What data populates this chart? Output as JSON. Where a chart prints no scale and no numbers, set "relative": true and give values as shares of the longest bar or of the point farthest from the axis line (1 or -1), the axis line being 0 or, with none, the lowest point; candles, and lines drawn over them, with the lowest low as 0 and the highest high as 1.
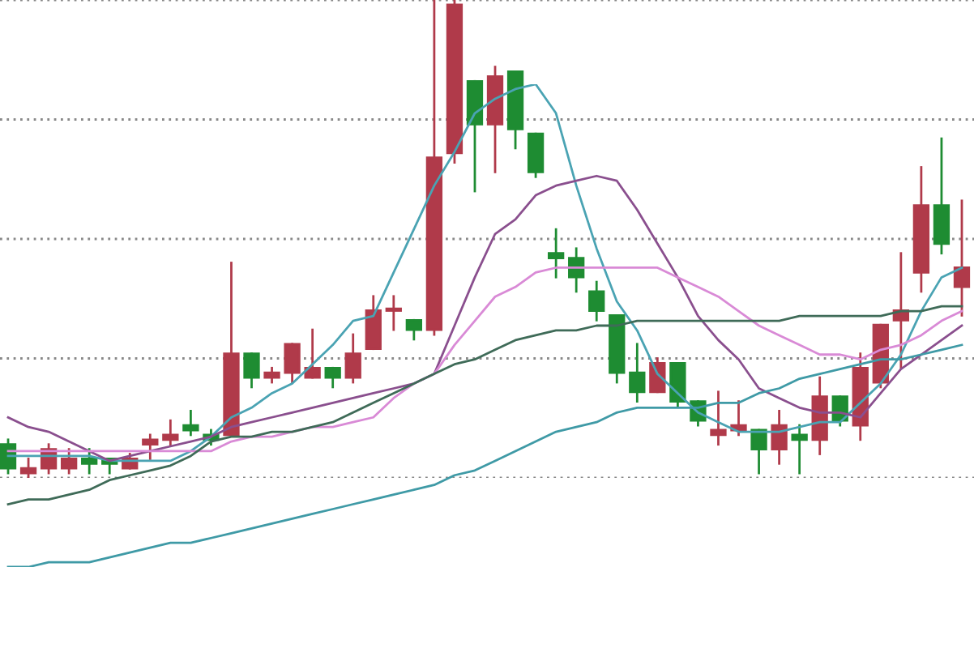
{
  "chart_data": [
    {
      "type": "candlestick",
      "relative": true,
      "grid": "y",
      "categories": [
        null,
        null,
        null,
        null,
        null,
        null,
        null,
        null,
        null,
        null,
        null,
        null,
        null,
        null,
        null,
        null,
        null,
        null,
        null,
        null,
        null,
        null,
        null,
        null,
        null,
        null,
        null,
        null,
        null,
        null,
        null,
        null,
        null,
        null,
        null,
        null,
        null,
        null,
        null,
        null,
        null,
        null,
        null,
        null,
        null,
        null,
        null,
        null
      ],
      "ohlc": [
        [
          0.07,
          0.08,
          0.01,
          0.02
        ],
        [
          0.01,
          0.04,
          0.0,
          0.02
        ],
        [
          0.02,
          0.07,
          0.01,
          0.06
        ],
        [
          0.02,
          0.06,
          0.01,
          0.04
        ],
        [
          0.04,
          0.06,
          0.01,
          0.03
        ],
        [
          0.04,
          0.04,
          0.01,
          0.03
        ],
        [
          0.02,
          0.05,
          0.02,
          0.04
        ],
        [
          0.07,
          0.09,
          0.04,
          0.08
        ],
        [
          0.08,
          0.12,
          0.07,
          0.09
        ],
        [
          0.11,
          0.14,
          0.09,
          0.1
        ],
        [
          0.09,
          0.1,
          0.07,
          0.08
        ],
        [
          0.09,
          0.45,
          0.09,
          0.26
        ],
        [
          0.26,
          0.26,
          0.19,
          0.21
        ],
        [
          0.21,
          0.23,
          0.2,
          0.22
        ],
        [
          0.22,
          0.28,
          0.2,
          0.28
        ],
        [
          0.21,
          0.31,
          0.21,
          0.23
        ],
        [
          0.23,
          0.23,
          0.19,
          0.21
        ],
        [
          0.21,
          0.3,
          0.2,
          0.26
        ],
        [
          0.27,
          0.38,
          0.27,
          0.35
        ],
        [
          0.35,
          0.38,
          0.31,
          0.35
        ],
        [
          0.33,
          0.33,
          0.29,
          0.31
        ],
        [
          0.31,
          1.0,
          0.3,
          0.67
        ],
        [
          0.68,
          1.0,
          0.66,
          0.99
        ],
        [
          0.83,
          0.83,
          0.6,
          0.74
        ],
        [
          0.74,
          0.86,
          0.64,
          0.84
        ],
        [
          0.85,
          0.85,
          0.69,
          0.73
        ],
        [
          0.72,
          0.72,
          0.63,
          0.64
        ],
        [
          0.47,
          0.52,
          0.42,
          0.46
        ],
        [
          0.46,
          0.48,
          0.39,
          0.42
        ],
        [
          0.39,
          0.41,
          0.33,
          0.35
        ],
        [
          0.34,
          0.34,
          0.2,
          0.22
        ],
        [
          0.22,
          0.28,
          0.16,
          0.18
        ],
        [
          0.18,
          0.25,
          0.18,
          0.24
        ],
        [
          0.24,
          0.24,
          0.15,
          0.16
        ],
        [
          0.16,
          0.16,
          0.11,
          0.12
        ],
        [
          0.09,
          0.18,
          0.07,
          0.1
        ],
        [
          0.1,
          0.16,
          0.09,
          0.11
        ],
        [
          0.1,
          0.1,
          0.01,
          0.06
        ],
        [
          0.06,
          0.14,
          0.03,
          0.11
        ],
        [
          0.09,
          0.11,
          0.01,
          0.08
        ],
        [
          0.08,
          0.21,
          0.05,
          0.17
        ],
        [
          0.17,
          0.17,
          0.11,
          0.12
        ],
        [
          0.11,
          0.26,
          0.08,
          0.23
        ],
        [
          0.2,
          0.32,
          0.19,
          0.32
        ],
        [
          0.33,
          0.47,
          0.23,
          0.35
        ],
        [
          0.43,
          0.65,
          0.39,
          0.57
        ],
        [
          0.57,
          0.71,
          0.47,
          0.49
        ],
        [
          0.4,
          0.58,
          0.34,
          0.44
        ]
      ],
      "colors": [
        "#1e8c32",
        "#b03a4a",
        "#b03a4a",
        "#b03a4a",
        "#1e8c32",
        "#1e8c32",
        "#b03a4a",
        "#b03a4a",
        "#b03a4a",
        "#1e8c32",
        "#1e8c32",
        "#b03a4a",
        "#1e8c32",
        "#b03a4a",
        "#b03a4a",
        "#b03a4a",
        "#1e8c32",
        "#b03a4a",
        "#b03a4a",
        "#b03a4a",
        "#1e8c32",
        "#b03a4a",
        "#b03a4a",
        "#1e8c32",
        "#b03a4a",
        "#1e8c32",
        "#1e8c32",
        "#1e8c32",
        "#1e8c32",
        "#1e8c32",
        "#1e8c32",
        "#1e8c32",
        "#b03a4a",
        "#1e8c32",
        "#1e8c32",
        "#b03a4a",
        "#b03a4a",
        "#1e8c32",
        "#b03a4a",
        "#1e8c32",
        "#b03a4a",
        "#1e8c32",
        "#b03a4a",
        "#b03a4a",
        "#b03a4a",
        "#b03a4a",
        "#1e8c32",
        "#b03a4a"
      ]
    },
    {
      "type": "line",
      "relative": true,
      "categories": [
        null,
        null,
        null,
        null,
        null,
        null,
        null,
        null,
        null,
        null,
        null,
        null,
        null,
        null,
        null,
        null,
        null,
        null,
        null,
        null,
        null,
        null,
        null,
        null,
        null,
        null,
        null,
        null,
        null,
        null,
        null,
        null,
        null,
        null,
        null,
        null,
        null,
        null,
        null,
        null,
        null,
        null,
        null,
        null,
        null,
        null,
        null,
        null
      ],
      "series": [
        {
          "color": "#4aa3b3",
          "values": [
            0.23,
            0.23,
            0.23,
            0.23,
            0.23,
            0.22,
            0.22,
            0.22,
            0.22,
            0.24,
            0.27,
            0.31,
            0.33,
            0.36,
            0.38,
            0.42,
            0.46,
            0.51,
            0.52,
            0.61,
            0.7,
            0.79,
            0.86,
            0.94,
            0.97,
            0.99,
            1.0,
            0.94,
            0.79,
            0.66,
            0.55,
            0.49,
            0.4,
            0.36,
            0.32,
            0.3,
            0.28,
            0.28,
            0.28,
            0.29,
            0.3,
            0.3,
            0.34,
            0.38,
            0.44,
            0.53,
            0.6,
            0.62
          ]
        },
        {
          "color": "#8a4f8e",
          "values": [
            0.31,
            0.29,
            0.28,
            0.26,
            0.24,
            0.22,
            0.23,
            0.24,
            0.25,
            0.26,
            0.27,
            0.29,
            0.3,
            0.31,
            0.32,
            0.33,
            0.34,
            0.35,
            0.36,
            0.37,
            0.38,
            0.4,
            0.5,
            0.6,
            0.69,
            0.72,
            0.77,
            0.79,
            0.8,
            0.81,
            0.8,
            0.74,
            0.67,
            0.6,
            0.52,
            0.47,
            0.43,
            0.37,
            0.35,
            0.33,
            0.32,
            0.32,
            0.31,
            0.36,
            0.41,
            0.44,
            0.47,
            0.5
          ]
        },
        {
          "color": "#d98ad6",
          "values": [
            0.24,
            0.24,
            0.24,
            0.24,
            0.24,
            0.24,
            0.24,
            0.24,
            0.24,
            0.24,
            0.24,
            0.26,
            0.27,
            0.27,
            0.28,
            0.29,
            0.29,
            0.3,
            0.31,
            0.35,
            0.38,
            0.4,
            0.46,
            0.51,
            0.56,
            0.58,
            0.61,
            0.62,
            0.62,
            0.62,
            0.62,
            0.62,
            0.62,
            0.6,
            0.58,
            0.56,
            0.53,
            0.5,
            0.48,
            0.46,
            0.44,
            0.44,
            0.43,
            0.45,
            0.46,
            0.48,
            0.51,
            0.53
          ]
        },
        {
          "color": "#3f6b58",
          "values": [
            0.13,
            0.14,
            0.14,
            0.15,
            0.16,
            0.18,
            0.19,
            0.2,
            0.21,
            0.23,
            0.26,
            0.27,
            0.27,
            0.28,
            0.28,
            0.29,
            0.3,
            0.32,
            0.34,
            0.36,
            0.38,
            0.4,
            0.42,
            0.43,
            0.45,
            0.47,
            0.48,
            0.49,
            0.49,
            0.5,
            0.5,
            0.51,
            0.51,
            0.51,
            0.51,
            0.51,
            0.51,
            0.51,
            0.51,
            0.52,
            0.52,
            0.52,
            0.52,
            0.52,
            0.53,
            0.53,
            0.54,
            0.54
          ]
        },
        {
          "color": "#3f9aa6",
          "values": [
            0.0,
            0.0,
            0.01,
            0.01,
            0.01,
            0.02,
            0.03,
            0.04,
            0.05,
            0.05,
            0.06,
            0.07,
            0.08,
            0.09,
            0.1,
            0.11,
            0.12,
            0.13,
            0.14,
            0.15,
            0.16,
            0.17,
            0.19,
            0.2,
            0.22,
            0.24,
            0.26,
            0.28,
            0.29,
            0.3,
            0.32,
            0.33,
            0.33,
            0.33,
            0.33,
            0.34,
            0.34,
            0.36,
            0.37,
            0.39,
            0.4,
            0.41,
            0.42,
            0.43,
            0.43,
            0.44,
            0.45,
            0.46
          ]
        }
      ]
    }
  ]
}
